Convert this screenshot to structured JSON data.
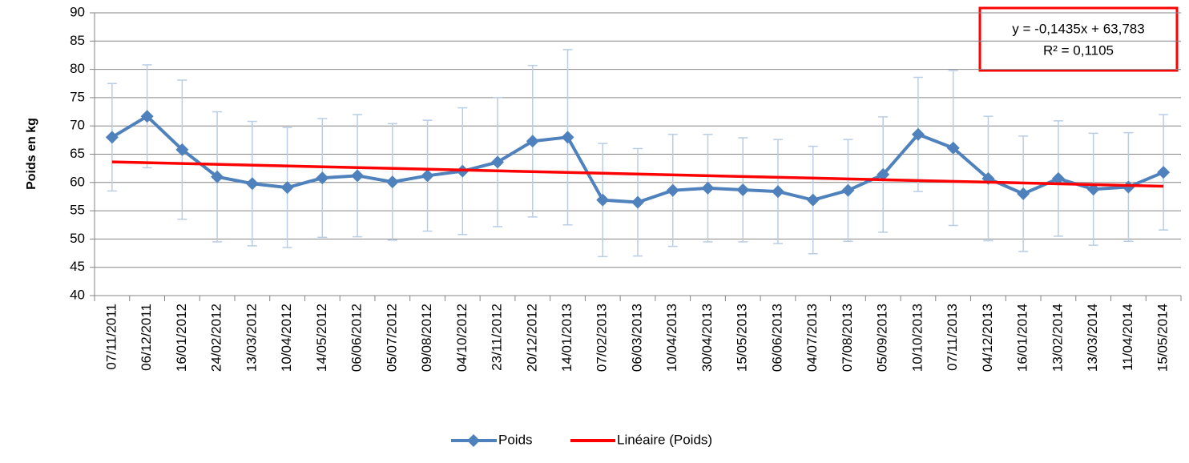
{
  "chart_data": {
    "type": "line",
    "y_axis_label": "Poids en kg",
    "categories": [
      "07/11/2011",
      "06/12/2011",
      "16/01/2012",
      "24/02/2012",
      "13/03/2012",
      "10/04/2012",
      "14/05/2012",
      "06/06/2012",
      "05/07/2012",
      "09/08/2012",
      "04/10/2012",
      "23/11/2012",
      "20/12/2012",
      "14/01/2013",
      "07/02/2013",
      "06/03/2013",
      "10/04/2013",
      "30/04/2013",
      "15/05/2013",
      "06/06/2013",
      "04/07/2013",
      "07/08/2013",
      "05/09/2013",
      "10/10/2013",
      "07/11/2013",
      "04/12/2013",
      "16/01/2014",
      "13/02/2014",
      "13/03/2014",
      "11/04/2014",
      "15/05/2014"
    ],
    "series": [
      {
        "name": "Poids",
        "color": "#4f81bd",
        "error_color": "#b9cde5",
        "values": [
          68.0,
          71.7,
          65.8,
          61.0,
          59.8,
          59.1,
          60.8,
          61.2,
          60.1,
          61.2,
          62.0,
          63.6,
          67.3,
          68.0,
          56.9,
          56.5,
          58.6,
          59.0,
          58.7,
          58.4,
          56.9,
          58.6,
          61.4,
          68.5,
          66.1,
          60.7,
          58.0,
          60.7,
          58.8,
          59.2,
          61.8
        ],
        "errors": [
          9.5,
          9.1,
          12.3,
          11.5,
          11.0,
          10.6,
          10.5,
          10.8,
          10.3,
          9.8,
          11.2,
          11.4,
          13.4,
          15.5,
          10.0,
          9.5,
          9.9,
          9.5,
          9.2,
          9.2,
          9.5,
          9.0,
          10.2,
          10.1,
          13.7,
          11.0,
          10.2,
          10.2,
          9.9,
          9.6,
          10.2
        ]
      }
    ],
    "trendline": {
      "name": "Linéaire (Poids)",
      "color": "#ff0000",
      "slope": -0.1435,
      "intercept": 63.783,
      "equation": "y = -0,1435x + 63,783",
      "r2": "R² = 0,1105"
    },
    "ylim": [
      40,
      90
    ],
    "yticks": [
      40,
      45,
      50,
      55,
      60,
      65,
      70,
      75,
      80,
      85,
      90
    ],
    "grid": true,
    "legend": "bottom"
  }
}
